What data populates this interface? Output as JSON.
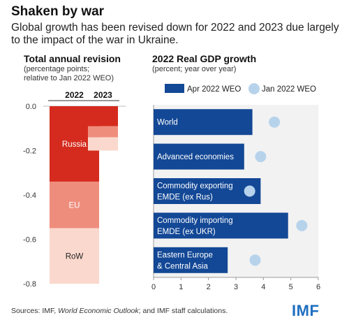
{
  "title": "Shaken by war",
  "subtitle": "Global growth has been revised down for 2022 and 2023 due largely to the impact of the war in Ukraine.",
  "left_panel": {
    "title": "Total annual revision",
    "subtitle_line1": "(percentage points;",
    "subtitle_line2": "relative to Jan 2022 WEO)"
  },
  "right_panel": {
    "title": "2022 Real GDP growth",
    "subtitle": "(percent; year over year)"
  },
  "footer": {
    "prefix": "Sources: IMF, ",
    "italic": "World Economic Outlook",
    "suffix": "; and IMF staff calculations."
  },
  "logo": "IMF",
  "colors": {
    "russia": "#d52b1e",
    "eu": "#ef8d7d",
    "row": "#fbd8cd",
    "apr": "#134896",
    "jan": "#b7d3ec",
    "axis_bg": "#f2f2f2"
  },
  "chart_data": [
    {
      "type": "bar",
      "stacked": true,
      "title": "Total annual revision",
      "categories": [
        "2022",
        "2023"
      ],
      "series": [
        {
          "name": "Russia",
          "values": [
            -0.34,
            -0.09
          ]
        },
        {
          "name": "EU",
          "values": [
            -0.21,
            -0.05
          ]
        },
        {
          "name": "RoW",
          "values": [
            -0.25,
            -0.06
          ]
        }
      ],
      "ylim": [
        -0.8,
        0.0
      ],
      "yticks": [
        "0.0",
        "-0.2",
        "-0.4",
        "-0.6",
        "-0.8"
      ],
      "ytick_values": [
        0.0,
        -0.2,
        -0.4,
        -0.6,
        -0.8
      ]
    },
    {
      "type": "bar",
      "orientation": "horizontal",
      "title": "2022 Real GDP growth",
      "categories": [
        "World",
        "Advanced economies",
        "Commodity exporting EMDE (ex Rus)",
        "Commodity importing EMDE (ex UKR)",
        "Eastern Europe & Central Asia"
      ],
      "category_lines": [
        [
          "World"
        ],
        [
          "Advanced economies"
        ],
        [
          "Commodity exporting",
          "EMDE (ex Rus)"
        ],
        [
          "Commodity importing",
          "EMDE (ex UKR)"
        ],
        [
          "Eastern Europe",
          "& Central Asia"
        ]
      ],
      "series": [
        {
          "name": "Apr 2022 WEO",
          "type": "bar",
          "values": [
            3.6,
            3.3,
            3.9,
            4.9,
            2.7
          ]
        },
        {
          "name": "Jan 2022 WEO",
          "type": "dot",
          "values": [
            4.4,
            3.9,
            3.5,
            5.4,
            3.7
          ]
        }
      ],
      "xlim": [
        0,
        6
      ],
      "xticks": [
        "0",
        "1",
        "2",
        "3",
        "4",
        "5",
        "6"
      ],
      "legend": "top"
    }
  ]
}
